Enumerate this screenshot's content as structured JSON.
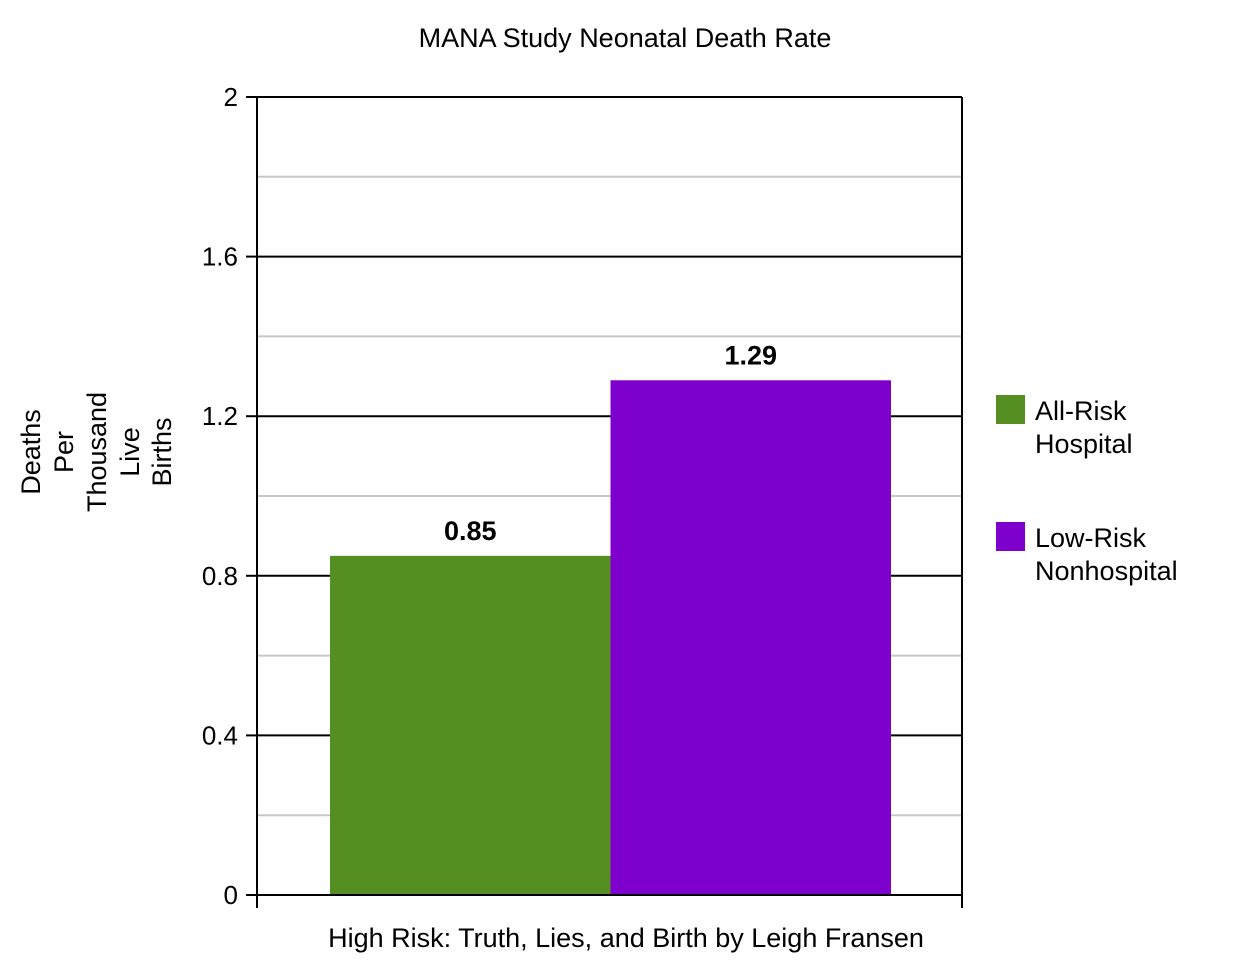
{
  "chart_data": {
    "type": "bar",
    "title": "MANA Study Neonatal Death Rate",
    "xlabel": "High Risk: Truth, Lies, and Birth by Leigh Fransen",
    "ylabel_lines": [
      "Deaths",
      "Per",
      "Thousand",
      "Live",
      "Births"
    ],
    "ylim": [
      0,
      2
    ],
    "yticks": [
      0,
      0.4,
      0.8,
      1.2,
      1.6,
      2
    ],
    "ytick_labels": [
      "0",
      "0.4",
      "0.8",
      "1.2",
      "1.6",
      "2"
    ],
    "minor_gridlines": [
      0.2,
      0.6,
      1.0,
      1.4,
      1.8
    ],
    "grid": true,
    "legend_position": "right",
    "series": [
      {
        "name": "All-Risk Hospital",
        "legend_lines": [
          "All-Risk",
          "Hospital"
        ],
        "value": 0.85,
        "value_label": "0.85",
        "color": "#558e21"
      },
      {
        "name": "Low-Risk Nonhospital",
        "legend_lines": [
          "Low-Risk",
          "Nonhospital"
        ],
        "value": 1.29,
        "value_label": "1.29",
        "color": "#7d00cc"
      }
    ]
  }
}
